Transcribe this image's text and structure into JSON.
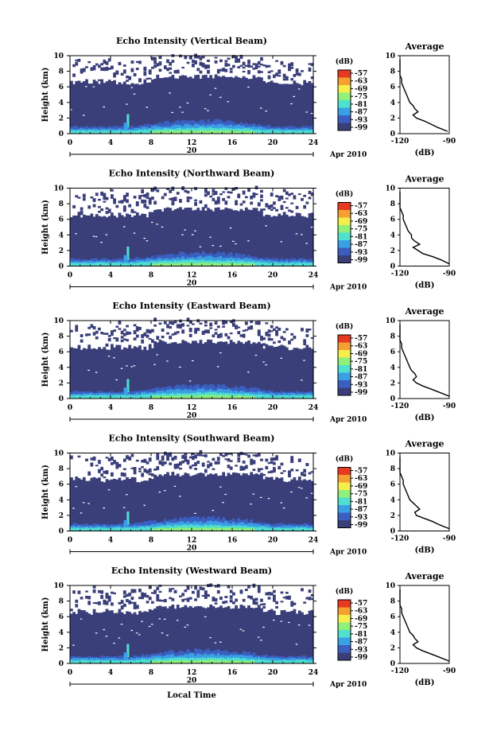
{
  "chart_data": [
    {
      "type": "heatmap",
      "title": "Echo Intensity (Vertical Beam)",
      "xlabel": "",
      "ylabel": "Height (km)",
      "xlim": [
        0,
        24
      ],
      "ylim": [
        0,
        10
      ],
      "xticks": [
        0,
        4,
        8,
        12,
        16,
        20,
        24
      ],
      "yticks": [
        0,
        2,
        4,
        6,
        8,
        10
      ],
      "date_labels": {
        "day": "20",
        "month_year": "Apr 2010"
      },
      "colorbar": {
        "label": "(dB)",
        "ticks": [
          -57,
          -63,
          -69,
          -75,
          -81,
          -87,
          -93,
          -99
        ]
      },
      "average_profile": {
        "title": "Average",
        "xlabel": "(dB)",
        "xlim": [
          -120,
          -90
        ],
        "xticks": [
          -120,
          -90
        ],
        "yticks": [
          0,
          2,
          4,
          6,
          8,
          10
        ],
        "height_km": [
          0.3,
          0.8,
          1.2,
          1.6,
          2.0,
          2.4,
          2.8,
          3.2,
          3.6,
          4.0,
          4.5,
          5.0,
          5.5,
          6.0,
          6.5,
          7.0,
          7.5,
          8.0,
          8.5,
          9.0,
          9.5
        ],
        "db": [
          -91,
          -97,
          -101,
          -105,
          -110,
          -112,
          -109,
          -111,
          -112,
          -114,
          -115,
          -116,
          -117,
          -118,
          -119,
          -119,
          -120,
          -120,
          -120,
          -120,
          -121
        ]
      }
    },
    {
      "type": "heatmap",
      "title": "Echo Intensity (Northward Beam)",
      "xlabel": "",
      "ylabel": "Height (km)",
      "xlim": [
        0,
        24
      ],
      "ylim": [
        0,
        10
      ],
      "xticks": [
        0,
        4,
        8,
        12,
        16,
        20,
        24
      ],
      "yticks": [
        0,
        2,
        4,
        6,
        8,
        10
      ],
      "date_labels": {
        "day": "20",
        "month_year": "Apr 2010"
      },
      "colorbar": {
        "label": "(dB)",
        "ticks": [
          -57,
          -63,
          -69,
          -75,
          -81,
          -87,
          -93,
          -99
        ]
      },
      "average_profile": {
        "title": "Average",
        "xlabel": "(dB)",
        "xlim": [
          -120,
          -90
        ],
        "xticks": [
          -120,
          -90
        ],
        "yticks": [
          0,
          2,
          4,
          6,
          8,
          10
        ],
        "height_km": [
          0.3,
          0.8,
          1.2,
          1.6,
          2.0,
          2.4,
          2.8,
          3.2,
          3.6,
          4.0,
          4.5,
          5.0,
          5.5,
          6.0,
          6.5,
          7.0,
          7.5,
          8.0,
          8.5,
          9.0,
          9.5
        ],
        "db": [
          -90,
          -95,
          -100,
          -106,
          -109,
          -112,
          -108,
          -111,
          -113,
          -113,
          -115,
          -116,
          -117,
          -118,
          -118,
          -119,
          -120,
          -120,
          -121,
          -120,
          -121
        ]
      }
    },
    {
      "type": "heatmap",
      "title": "Echo Intensity (Eastward Beam)",
      "xlabel": "",
      "ylabel": "Height (km)",
      "xlim": [
        0,
        24
      ],
      "ylim": [
        0,
        10
      ],
      "xticks": [
        0,
        4,
        8,
        12,
        16,
        20,
        24
      ],
      "yticks": [
        0,
        2,
        4,
        6,
        8,
        10
      ],
      "date_labels": {
        "day": "20",
        "month_year": "Apr 2010"
      },
      "colorbar": {
        "label": "(dB)",
        "ticks": [
          -57,
          -63,
          -69,
          -75,
          -81,
          -87,
          -93,
          -99
        ]
      },
      "average_profile": {
        "title": "Average",
        "xlabel": "(dB)",
        "xlim": [
          -120,
          -90
        ],
        "xticks": [
          -120,
          -90
        ],
        "yticks": [
          0,
          2,
          4,
          6,
          8,
          10
        ],
        "height_km": [
          0.3,
          0.8,
          1.2,
          1.6,
          2.0,
          2.4,
          2.8,
          3.2,
          3.6,
          4.0,
          4.5,
          5.0,
          5.5,
          6.0,
          6.5,
          7.0,
          7.5,
          8.0,
          8.5,
          9.0,
          9.5
        ],
        "db": [
          -90,
          -96,
          -101,
          -106,
          -110,
          -112,
          -110,
          -111,
          -113,
          -114,
          -115,
          -116,
          -117,
          -118,
          -119,
          -119,
          -120,
          -120,
          -120,
          -121,
          -121
        ]
      }
    },
    {
      "type": "heatmap",
      "title": "Echo Intensity (Southward Beam)",
      "xlabel": "",
      "ylabel": "Height (km)",
      "xlim": [
        0,
        24
      ],
      "ylim": [
        0,
        10
      ],
      "xticks": [
        0,
        4,
        8,
        12,
        16,
        20,
        24
      ],
      "yticks": [
        0,
        2,
        4,
        6,
        8,
        10
      ],
      "date_labels": {
        "day": "20",
        "month_year": "Apr 2010"
      },
      "colorbar": {
        "label": "(dB)",
        "ticks": [
          -57,
          -63,
          -69,
          -75,
          -81,
          -87,
          -93,
          -99
        ]
      },
      "average_profile": {
        "title": "Average",
        "xlabel": "(dB)",
        "xlim": [
          -120,
          -90
        ],
        "xticks": [
          -120,
          -90
        ],
        "yticks": [
          0,
          2,
          4,
          6,
          8,
          10
        ],
        "height_km": [
          0.3,
          0.8,
          1.2,
          1.6,
          2.0,
          2.4,
          2.8,
          3.2,
          3.6,
          4.0,
          4.5,
          5.0,
          5.5,
          6.0,
          6.5,
          7.0,
          7.5,
          8.0,
          8.5,
          9.0,
          9.5
        ],
        "db": [
          -90,
          -96,
          -100,
          -105,
          -110,
          -111,
          -108,
          -110,
          -112,
          -114,
          -115,
          -116,
          -117,
          -118,
          -118,
          -119,
          -120,
          -120,
          -121,
          -120,
          -121
        ]
      }
    },
    {
      "type": "heatmap",
      "title": "Echo Intensity (Westward Beam)",
      "xlabel": "Local Time",
      "ylabel": "Height (km)",
      "xlim": [
        0,
        24
      ],
      "ylim": [
        0,
        10
      ],
      "xticks": [
        0,
        4,
        8,
        12,
        16,
        20,
        24
      ],
      "yticks": [
        0,
        2,
        4,
        6,
        8,
        10
      ],
      "date_labels": {
        "day": "20",
        "month_year": "Apr 2010"
      },
      "colorbar": {
        "label": "(dB)",
        "ticks": [
          -57,
          -63,
          -69,
          -75,
          -81,
          -87,
          -93,
          -99
        ]
      },
      "average_profile": {
        "title": "Average",
        "xlabel": "(dB)",
        "xlim": [
          -120,
          -90
        ],
        "xticks": [
          -120,
          -90
        ],
        "yticks": [
          0,
          2,
          4,
          6,
          8,
          10
        ],
        "height_km": [
          0.3,
          0.8,
          1.2,
          1.6,
          2.0,
          2.4,
          2.8,
          3.2,
          3.6,
          4.0,
          4.5,
          5.0,
          5.5,
          6.0,
          6.5,
          7.0,
          7.5,
          8.0,
          8.5,
          9.0,
          9.5
        ],
        "db": [
          -90,
          -96,
          -101,
          -106,
          -110,
          -112,
          -109,
          -111,
          -112,
          -114,
          -115,
          -116,
          -117,
          -118,
          -119,
          -119,
          -120,
          -120,
          -121,
          -121,
          -121
        ]
      }
    }
  ],
  "colors": {
    "background_echo": "#3a3f7a",
    "colormap": [
      "#3a3f7a",
      "#3b5fc0",
      "#3aa0e6",
      "#4fe0d0",
      "#8ff07a",
      "#f4ef4a",
      "#f5a030",
      "#e83a20"
    ]
  }
}
